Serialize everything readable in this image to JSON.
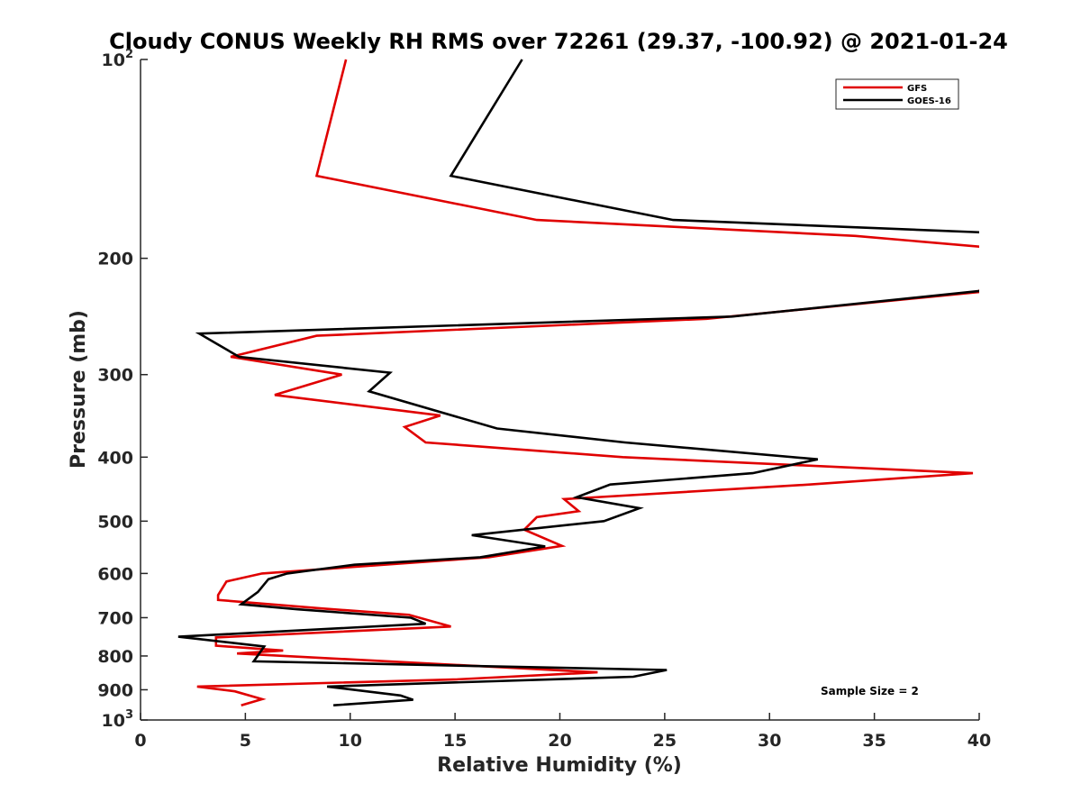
{
  "chart_data": {
    "type": "line",
    "title": "Cloudy CONUS Weekly RH RMS over 72261 (29.37, -100.92) @ 2021-01-24",
    "xlabel": "Relative Humidity (%)",
    "ylabel": "Pressure (mb)",
    "xlim": [
      0,
      40
    ],
    "ylim": [
      100,
      1000
    ],
    "y_scale": "log",
    "y_reversed": true,
    "grid": false,
    "legend_position": "top-right",
    "x_ticks": [
      "0",
      "5",
      "10",
      "15",
      "20",
      "25",
      "30",
      "35",
      "40"
    ],
    "y_ticks": [
      {
        "value": 100,
        "base": "10",
        "exp": "2"
      },
      {
        "value": 200,
        "label": "200"
      },
      {
        "value": 300,
        "label": "300"
      },
      {
        "value": 400,
        "label": "400"
      },
      {
        "value": 500,
        "label": "500"
      },
      {
        "value": 600,
        "label": "600"
      },
      {
        "value": 700,
        "label": "700"
      },
      {
        "value": 800,
        "label": "800"
      },
      {
        "value": 900,
        "label": "900"
      },
      {
        "value": 1000,
        "base": "10",
        "exp": "3"
      }
    ],
    "series": [
      {
        "name": "GFS",
        "color": "#e00000",
        "points": [
          [
            9.8,
            100
          ],
          [
            8.4,
            150
          ],
          [
            18.9,
            175
          ],
          [
            34.1,
            185
          ],
          [
            40.8,
            193
          ],
          [
            40.0,
            225
          ],
          [
            27.0,
            247
          ],
          [
            8.4,
            262
          ],
          [
            4.3,
            282
          ],
          [
            9.6,
            300
          ],
          [
            6.4,
            322
          ],
          [
            14.3,
            346
          ],
          [
            12.6,
            360
          ],
          [
            13.6,
            380
          ],
          [
            23.0,
            400
          ],
          [
            39.7,
            423
          ],
          [
            31.9,
            440
          ],
          [
            20.2,
            463
          ],
          [
            20.9,
            483
          ],
          [
            18.9,
            493
          ],
          [
            18.3,
            515
          ],
          [
            20.1,
            545
          ],
          [
            16.6,
            567
          ],
          [
            5.8,
            600
          ],
          [
            4.1,
            617
          ],
          [
            3.7,
            647
          ],
          [
            3.7,
            658
          ],
          [
            8.7,
            678
          ],
          [
            12.8,
            693
          ],
          [
            14.8,
            722
          ],
          [
            3.6,
            750
          ],
          [
            3.6,
            772
          ],
          [
            6.8,
            785
          ],
          [
            4.6,
            793
          ],
          [
            21.8,
            847
          ],
          [
            15.1,
            868
          ],
          [
            2.7,
            890
          ],
          [
            4.5,
            905
          ],
          [
            5.8,
            930
          ],
          [
            4.8,
            950
          ]
        ]
      },
      {
        "name": "GOES-16",
        "color": "#000000",
        "points": [
          [
            18.2,
            100
          ],
          [
            14.8,
            150
          ],
          [
            25.4,
            175
          ],
          [
            40.7,
            183
          ],
          [
            40.7,
            223
          ],
          [
            28.2,
            245
          ],
          [
            2.8,
            260
          ],
          [
            4.7,
            282
          ],
          [
            11.9,
            298
          ],
          [
            10.9,
            318
          ],
          [
            17.0,
            362
          ],
          [
            23.1,
            380
          ],
          [
            32.3,
            403
          ],
          [
            29.2,
            423
          ],
          [
            22.4,
            440
          ],
          [
            20.8,
            460
          ],
          [
            23.8,
            478
          ],
          [
            22.1,
            500
          ],
          [
            15.8,
            525
          ],
          [
            19.3,
            546
          ],
          [
            16.2,
            567
          ],
          [
            10.2,
            582
          ],
          [
            7.0,
            600
          ],
          [
            6.1,
            612
          ],
          [
            5.6,
            640
          ],
          [
            4.8,
            668
          ],
          [
            7.5,
            680
          ],
          [
            12.9,
            700
          ],
          [
            13.6,
            715
          ],
          [
            1.8,
            748
          ],
          [
            5.9,
            774
          ],
          [
            5.4,
            815
          ],
          [
            25.1,
            840
          ],
          [
            23.5,
            860
          ],
          [
            8.9,
            890
          ],
          [
            12.4,
            918
          ],
          [
            13.0,
            932
          ],
          [
            9.2,
            950
          ]
        ]
      }
    ],
    "annotation": "Sample Size = 2"
  }
}
